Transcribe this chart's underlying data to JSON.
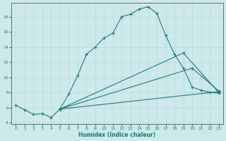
{
  "xlabel": "Humidex (Indice chaleur)",
  "xlim": [
    -0.5,
    23.5
  ],
  "ylim": [
    3.8,
    19.8
  ],
  "xticks": [
    0,
    1,
    2,
    3,
    4,
    5,
    6,
    7,
    8,
    9,
    10,
    11,
    12,
    13,
    14,
    15,
    16,
    17,
    18,
    19,
    20,
    21,
    22,
    23
  ],
  "yticks": [
    4,
    6,
    8,
    10,
    12,
    14,
    16,
    18
  ],
  "bg_color": "#cce9ec",
  "grid_color": "#b8dde0",
  "line_color": "#1a7a6e",
  "series": [
    {
      "x": [
        0,
        1,
        2,
        3,
        4,
        5,
        6,
        7,
        8,
        9,
        10,
        11,
        12,
        13,
        14,
        15,
        16,
        17,
        18,
        19,
        20,
        21,
        22,
        23
      ],
      "y": [
        6.3,
        5.7,
        5.1,
        5.2,
        4.7,
        5.8,
        7.8,
        10.2,
        13.0,
        14.0,
        15.2,
        15.8,
        18.0,
        18.3,
        19.0,
        19.3,
        18.4,
        15.5,
        13.0,
        11.2,
        8.7,
        8.3,
        8.0,
        7.9
      ]
    },
    {
      "x": [
        5,
        19,
        23
      ],
      "y": [
        5.8,
        13.2,
        8.0
      ]
    },
    {
      "x": [
        5,
        20,
        23
      ],
      "y": [
        5.8,
        11.2,
        8.2
      ]
    },
    {
      "x": [
        5,
        23
      ],
      "y": [
        5.8,
        8.1
      ]
    }
  ]
}
